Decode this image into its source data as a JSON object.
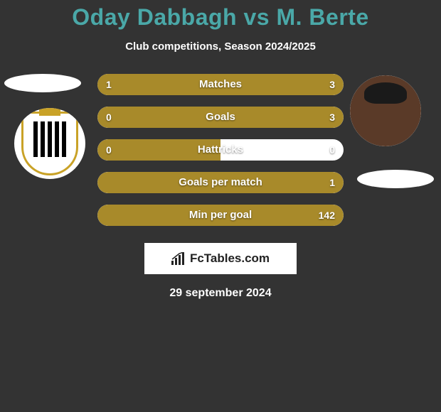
{
  "title": "Oday Dabbagh vs M. Berte",
  "subtitle": "Club competitions, Season 2024/2025",
  "date": "29 september 2024",
  "brand": "FcTables.com",
  "colors": {
    "title": "#4aa8a8",
    "background": "#333333",
    "bar_track": "#ffffff",
    "bar_fill": "#a88a2a",
    "text": "#ffffff"
  },
  "stats": [
    {
      "label": "Matches",
      "left_value": "1",
      "right_value": "3",
      "left_pct": 25,
      "right_pct": 75,
      "left_color": "#a88a2a",
      "right_color": "#a88a2a",
      "full": true
    },
    {
      "label": "Goals",
      "left_value": "0",
      "right_value": "3",
      "left_pct": 0,
      "right_pct": 100,
      "left_color": "#a88a2a",
      "right_color": "#a88a2a",
      "full": true
    },
    {
      "label": "Hattricks",
      "left_value": "0",
      "right_value": "0",
      "left_pct": 50,
      "right_pct": 0,
      "left_color": "#a88a2a",
      "right_color": "#a88a2a",
      "full": false
    },
    {
      "label": "Goals per match",
      "left_value": "",
      "right_value": "1",
      "left_pct": 0,
      "right_pct": 100,
      "left_color": "#a88a2a",
      "right_color": "#a88a2a",
      "full": true
    },
    {
      "label": "Min per goal",
      "left_value": "",
      "right_value": "142",
      "left_pct": 0,
      "right_pct": 100,
      "left_color": "#a88a2a",
      "right_color": "#a88a2a",
      "full": true
    }
  ],
  "bar_style": {
    "height": 30,
    "radius": 15,
    "gap": 16,
    "label_fontsize": 15,
    "value_fontsize": 14
  }
}
